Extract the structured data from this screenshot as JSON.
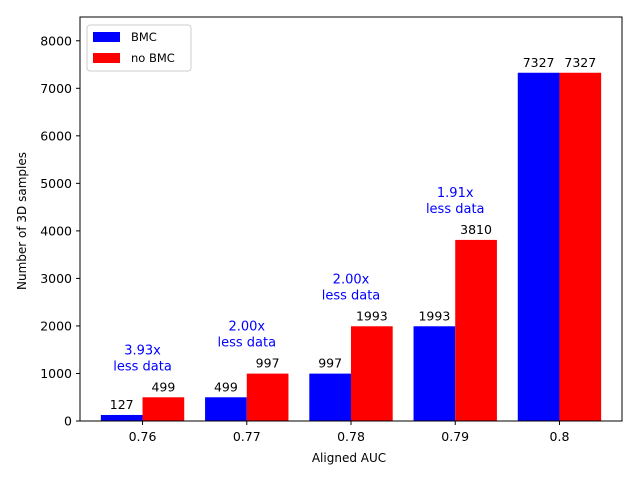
{
  "chart_data": {
    "type": "bar",
    "categories": [
      "0.76",
      "0.77",
      "0.78",
      "0.79",
      "0.8"
    ],
    "series": [
      {
        "name": "BMC",
        "color": "#0000ff",
        "values": [
          127,
          499,
          997,
          1993,
          7327
        ]
      },
      {
        "name": "no BMC",
        "color": "#ff0000",
        "values": [
          499,
          997,
          1993,
          3810,
          7327
        ]
      }
    ],
    "xlabel": "Aligned AUC",
    "ylabel": "Number of 3D samples",
    "ylim": [
      0,
      8500
    ],
    "yticks": [
      0,
      1000,
      2000,
      3000,
      4000,
      5000,
      6000,
      7000,
      8000
    ],
    "legend_position": "top-left",
    "grid": false,
    "annotation_color": "#0000ff",
    "annotations": [
      {
        "category": "0.76",
        "line1": "3.93x",
        "line2": "less data"
      },
      {
        "category": "0.77",
        "line1": "2.00x",
        "line2": "less data"
      },
      {
        "category": "0.78",
        "line1": "2.00x",
        "line2": "less data"
      },
      {
        "category": "0.79",
        "line1": "1.91x",
        "line2": "less data"
      }
    ]
  }
}
